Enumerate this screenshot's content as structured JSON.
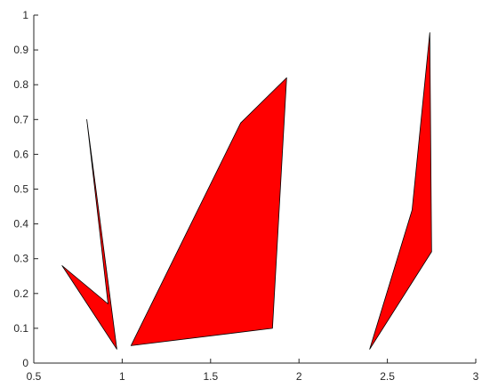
{
  "chart_data": {
    "type": "area",
    "title": "",
    "xlabel": "",
    "ylabel": "",
    "xlim": [
      0.5,
      3
    ],
    "ylim": [
      0,
      1
    ],
    "x_ticks": [
      0.5,
      1,
      1.5,
      2,
      2.5,
      3
    ],
    "x_tick_labels": [
      "0.5",
      "1",
      "1.5",
      "2",
      "2.5",
      "3"
    ],
    "y_ticks": [
      0,
      0.1,
      0.2,
      0.3,
      0.4,
      0.5,
      0.6,
      0.7,
      0.8,
      0.9,
      1
    ],
    "y_tick_labels": [
      "0",
      "0.1",
      "0.2",
      "0.3",
      "0.4",
      "0.5",
      "0.6",
      "0.7",
      "0.8",
      "0.9",
      "1"
    ],
    "grid": false,
    "box": false,
    "polygons": [
      {
        "fill": "#ff0000",
        "edge": "#000000",
        "points": [
          [
            0.66,
            0.28
          ],
          [
            0.92,
            0.17
          ],
          [
            0.8,
            0.7
          ],
          [
            0.97,
            0.04
          ]
        ]
      },
      {
        "fill": "#ff0000",
        "edge": "#000000",
        "points": [
          [
            1.05,
            0.05
          ],
          [
            1.67,
            0.69
          ],
          [
            1.93,
            0.82
          ],
          [
            1.85,
            0.1
          ]
        ]
      },
      {
        "fill": "#ff0000",
        "edge": "#000000",
        "points": [
          [
            2.4,
            0.04
          ],
          [
            2.64,
            0.44
          ],
          [
            2.74,
            0.95
          ],
          [
            2.75,
            0.32
          ]
        ]
      }
    ]
  }
}
